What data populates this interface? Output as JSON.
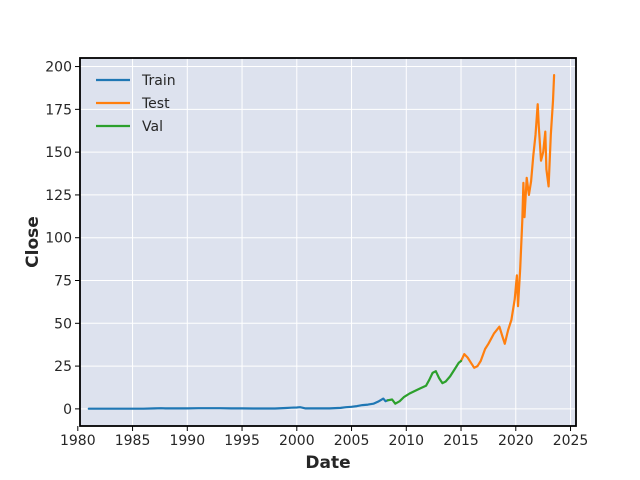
{
  "chart_data": {
    "type": "line",
    "title": "",
    "xlabel": "Date",
    "ylabel": "Close",
    "xlim": [
      1980.2,
      2025.5
    ],
    "ylim": [
      -10,
      205
    ],
    "xticks": [
      1980,
      1985,
      1990,
      1995,
      2000,
      2005,
      2010,
      2015,
      2020,
      2025
    ],
    "yticks": [
      0,
      25,
      50,
      75,
      100,
      125,
      150,
      175,
      200
    ],
    "grid": true,
    "legend_position": "top-left",
    "background_color": "#dde2ee",
    "series": [
      {
        "name": "Train",
        "color": "#1f77b4",
        "x": [
          1981.0,
          1982.0,
          1983.0,
          1984.0,
          1985.0,
          1986.0,
          1987.0,
          1987.6,
          1988.0,
          1989.0,
          1990.0,
          1991.0,
          1992.0,
          1993.0,
          1994.0,
          1995.0,
          1996.0,
          1997.0,
          1998.0,
          1999.0,
          1999.5,
          2000.0,
          2000.3,
          2000.8,
          2001.0,
          2002.0,
          2003.0,
          2004.0,
          2004.5,
          2005.0,
          2005.5,
          2006.0,
          2006.5,
          2007.0,
          2007.5,
          2007.9,
          2008.1,
          2008.3
        ],
        "y": [
          0.1,
          0.1,
          0.1,
          0.1,
          0.1,
          0.1,
          0.3,
          0.4,
          0.3,
          0.3,
          0.3,
          0.4,
          0.4,
          0.4,
          0.3,
          0.3,
          0.2,
          0.2,
          0.2,
          0.5,
          0.7,
          0.8,
          1.0,
          0.3,
          0.3,
          0.3,
          0.3,
          0.6,
          1.0,
          1.2,
          1.6,
          2.2,
          2.5,
          3.0,
          4.5,
          6.0,
          4.5,
          5.0
        ]
      },
      {
        "name": "Test",
        "color": "#ff7f0e",
        "x": [
          2015.0,
          2015.3,
          2015.6,
          2015.9,
          2016.2,
          2016.5,
          2016.8,
          2017.2,
          2017.5,
          2018.0,
          2018.5,
          2018.8,
          2019.0,
          2019.3,
          2019.6,
          2019.9,
          2020.1,
          2020.2,
          2020.4,
          2020.6,
          2020.7,
          2020.8,
          2021.0,
          2021.2,
          2021.4,
          2021.6,
          2021.8,
          2022.0,
          2022.1,
          2022.3,
          2022.5,
          2022.7,
          2022.8,
          2023.0,
          2023.2,
          2023.4,
          2023.5
        ],
        "y": [
          28,
          32,
          30,
          27,
          24,
          25,
          28,
          35,
          38,
          44,
          48,
          42,
          38,
          46,
          52,
          64,
          78,
          60,
          82,
          110,
          132,
          112,
          135,
          125,
          133,
          148,
          160,
          178,
          165,
          145,
          150,
          162,
          140,
          130,
          160,
          180,
          195
        ]
      },
      {
        "name": "Val",
        "color": "#2ca02c",
        "x": [
          2008.3,
          2008.7,
          2009.0,
          2009.4,
          2009.8,
          2010.3,
          2010.8,
          2011.3,
          2011.8,
          2012.1,
          2012.4,
          2012.7,
          2013.0,
          2013.3,
          2013.6,
          2014.0,
          2014.4,
          2014.8,
          2015.0
        ],
        "y": [
          5.0,
          5.5,
          3.0,
          4.5,
          7.0,
          9.0,
          10.5,
          12.0,
          13.5,
          17.0,
          21.0,
          22.0,
          18.0,
          15.0,
          16.0,
          19.0,
          23.0,
          27.0,
          28.0
        ]
      }
    ]
  }
}
